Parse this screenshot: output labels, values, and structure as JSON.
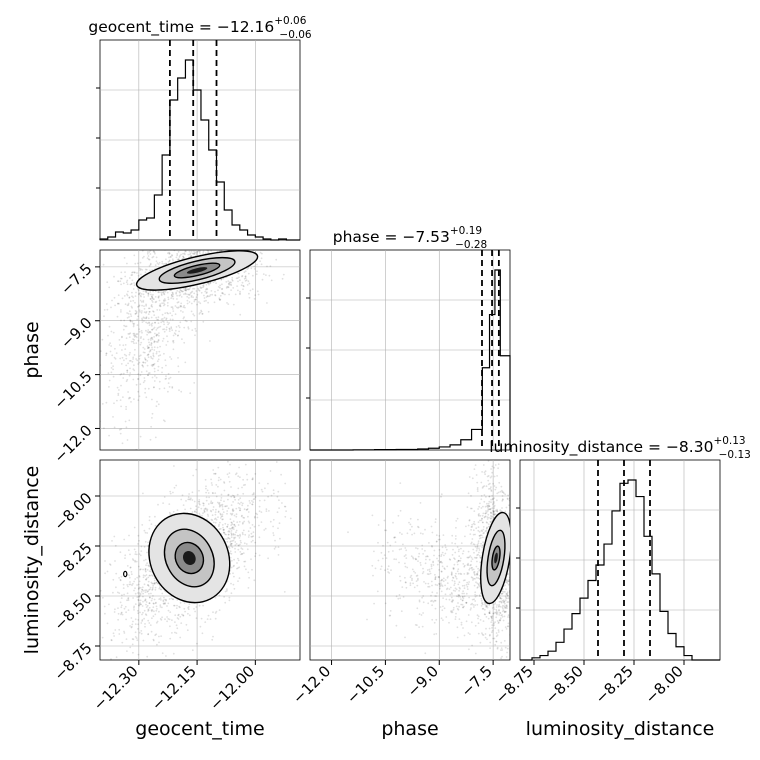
{
  "chart_data": {
    "type": "corner",
    "parameters": [
      "geocent_time",
      "phase",
      "luminosity_distance"
    ],
    "titles": [
      {
        "param": "geocent_time",
        "label": "geocent_time",
        "median": "−12.16",
        "plus": "+0.06",
        "minus": "−0.06"
      },
      {
        "param": "phase",
        "label": "phase",
        "median": "−7.53",
        "plus": "+0.19",
        "minus": "−0.28"
      },
      {
        "param": "luminosity_distance",
        "label": "luminosity_distance",
        "median": "−8.30",
        "plus": "+0.13",
        "minus": "−0.13"
      }
    ],
    "axis_labels": {
      "geocent_time": "geocent_time",
      "phase": "phase",
      "luminosity_distance": "luminosity_distance"
    },
    "ranges": {
      "geocent_time": [
        -12.4,
        -11.885
      ],
      "phase": [
        -12.6,
        -7.03
      ],
      "luminosity_distance": [
        -8.82,
        -7.82
      ]
    },
    "ticks": {
      "geocent_time": {
        "values": [
          -12.3,
          -12.15,
          -12.0
        ],
        "labels": [
          "−12.30",
          "−12.15",
          "−12.00"
        ]
      },
      "phase_x": {
        "values": [
          -12.0,
          -10.5,
          -9.0,
          -7.5
        ],
        "labels": [
          "−12.0",
          "−10.5",
          "−9.0",
          "−7.5"
        ]
      },
      "phase_y": {
        "values": [
          -7.5,
          -9.0,
          -10.5,
          -12.0
        ],
        "labels": [
          "−7.5",
          "−9.0",
          "−10.5",
          "−12.0"
        ]
      },
      "luminosity_distance_x": {
        "values": [
          -8.75,
          -8.5,
          -8.25,
          -8.0
        ],
        "labels": [
          "−8.75",
          "−8.50",
          "−8.25",
          "−8.00"
        ]
      },
      "luminosity_distance_y": {
        "values": [
          -8.0,
          -8.25,
          -8.5,
          -8.75
        ],
        "labels": [
          "−8.00",
          "−8.25",
          "−8.50",
          "−8.75"
        ]
      }
    },
    "quantile_lines": {
      "geocent_time": [
        -12.22,
        -12.16,
        -12.1
      ],
      "phase": [
        -7.81,
        -7.53,
        -7.34
      ],
      "luminosity_distance": [
        -8.43,
        -8.3,
        -8.17
      ]
    },
    "histograms": {
      "geocent_time": {
        "edges": [
          -12.4,
          -12.38,
          -12.36,
          -12.34,
          -12.32,
          -12.3,
          -12.28,
          -12.26,
          -12.24,
          -12.22,
          -12.2,
          -12.18,
          -12.16,
          -12.14,
          -12.12,
          -12.1,
          -12.08,
          -12.06,
          -12.04,
          -12.02,
          -12.0,
          -11.98,
          -11.96,
          -11.94,
          -11.92,
          -11.885
        ],
        "counts": [
          1,
          3,
          8,
          7,
          10,
          20,
          22,
          45,
          85,
          140,
          162,
          180,
          150,
          120,
          90,
          58,
          30,
          15,
          10,
          5,
          3,
          1,
          0,
          1,
          0
        ]
      },
      "phase": {
        "edges": [
          -12.6,
          -11.4,
          -10.8,
          -10.2,
          -9.6,
          -9.3,
          -9.0,
          -8.7,
          -8.4,
          -8.1,
          -7.8,
          -7.6,
          -7.45,
          -7.3,
          -7.03
        ],
        "counts": [
          0,
          1,
          2,
          3,
          6,
          10,
          18,
          30,
          60,
          120,
          480,
          790,
          1050,
          550
        ]
      },
      "luminosity_distance": {
        "edges": [
          -8.82,
          -8.76,
          -8.72,
          -8.68,
          -8.64,
          -8.6,
          -8.56,
          -8.52,
          -8.48,
          -8.44,
          -8.4,
          -8.36,
          -8.32,
          -8.28,
          -8.24,
          -8.2,
          -8.16,
          -8.12,
          -8.08,
          -8.04,
          -8.0,
          -7.96,
          -7.82
        ],
        "counts": [
          0,
          2,
          4,
          8,
          16,
          28,
          42,
          56,
          72,
          86,
          105,
          135,
          160,
          163,
          148,
          112,
          78,
          44,
          24,
          12,
          4,
          0
        ]
      }
    },
    "density": {
      "geocent_time|phase": {
        "mean": [
          -12.15,
          -7.6
        ],
        "sd": [
          0.05,
          0.32
        ],
        "rho": 0.3,
        "tail": {
          "mean": [
            -12.28,
            -9.4
          ],
          "sd": [
            0.06,
            1.2
          ]
        },
        "contours": [
          {
            "rx": 0.06,
            "ry": 0.14
          },
          {
            "rx": 0.1,
            "ry": 0.26
          },
          {
            "rx": 0.16,
            "ry": 0.38
          }
        ]
      },
      "geocent_time|luminosity_distance": {
        "mean": [
          -12.17,
          -8.31
        ],
        "sd": [
          0.06,
          0.12
        ],
        "rho": 0.6,
        "contours": [
          {
            "rx": 0.035,
            "ry": 0.08
          },
          {
            "rx": 0.06,
            "ry": 0.15
          },
          {
            "rx": 0.1,
            "ry": 0.23
          }
        ],
        "island": {
          "x": -12.335,
          "y": -8.39
        }
      },
      "phase|luminosity_distance": {
        "mean": [
          -7.42,
          -8.31
        ],
        "sd": [
          0.18,
          0.13
        ],
        "rho": -0.2,
        "tail": {
          "mean": [
            -8.6,
            -8.4
          ],
          "sd": [
            1.0,
            0.15
          ]
        },
        "contours": [
          {
            "rx": 0.1,
            "ry": 0.06
          },
          {
            "rx": 0.22,
            "ry": 0.14
          },
          {
            "rx": 0.38,
            "ry": 0.23
          }
        ]
      }
    },
    "grid": true,
    "colors": {
      "line": "#000000",
      "grid": "#b0b0b0",
      "points": "#000000"
    }
  }
}
